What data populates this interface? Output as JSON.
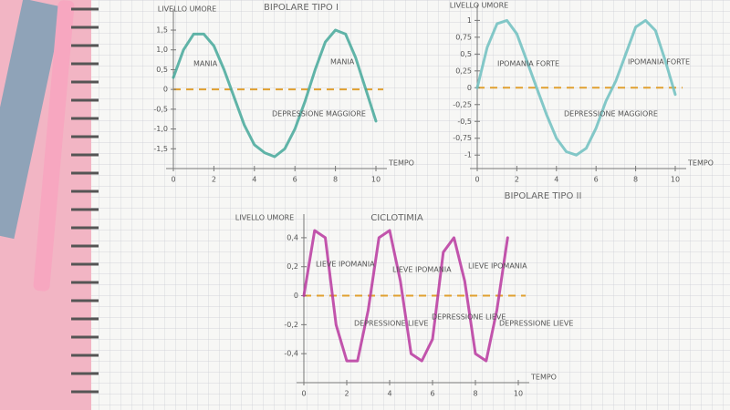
{
  "chart_data": [
    {
      "type": "line",
      "title": "BIPOLARE TIPO I",
      "y_label": "LIVELLO UMORE",
      "x_label": "TEMPO",
      "xlim": [
        0,
        10
      ],
      "ylim": [
        -2,
        1.8
      ],
      "xticks": [
        0,
        2,
        4,
        6,
        8,
        10
      ],
      "yticks": [
        {
          "value": 1.5,
          "label": "1,5"
        },
        {
          "value": 1,
          "label": "1,0"
        },
        {
          "value": 0.5,
          "label": "0,5"
        },
        0,
        {
          "value": -0.5,
          "label": "-0,5"
        },
        {
          "value": -1,
          "label": "-1,0"
        },
        {
          "value": -1.5,
          "label": "-1,5"
        }
      ],
      "annotations": [
        "MANIA",
        "MANIA",
        "DEPRESSIONE MAGGIORE"
      ],
      "series": [
        {
          "color": "#45a89a",
          "x": [
            0,
            0.5,
            1,
            1.5,
            2,
            2.5,
            3,
            3.5,
            4,
            4.5,
            5,
            5.5,
            6,
            6.5,
            7,
            7.5,
            8,
            8.5,
            9,
            9.5,
            10
          ],
          "values": [
            0.3,
            1.0,
            1.4,
            1.4,
            1.1,
            0.5,
            -0.2,
            -0.9,
            -1.4,
            -1.6,
            -1.7,
            -1.5,
            -1.0,
            -0.3,
            0.5,
            1.2,
            1.5,
            1.4,
            0.8,
            0,
            -0.8
          ]
        }
      ]
    },
    {
      "type": "line",
      "title": "BIPOLARE TIPO II",
      "y_label": "LIVELLO UMORE",
      "x_label": "TEMPO",
      "xlim": [
        0,
        10
      ],
      "ylim": [
        -1.2,
        1.1
      ],
      "xticks": [
        0,
        2,
        4,
        6,
        8,
        10
      ],
      "yticks": [
        1,
        {
          "value": 0.75,
          "label": "0,75"
        },
        {
          "value": 0.5,
          "label": "0,5"
        },
        {
          "value": 0.25,
          "label": "0,25"
        },
        0,
        {
          "value": -0.25,
          "label": "-0,25"
        },
        {
          "value": -0.5,
          "label": "-0,5"
        },
        {
          "value": -0.75,
          "label": "-0,75"
        },
        -1
      ],
      "annotations": [
        "IPOMANIA FORTE",
        "DEPRESSIONE MAGGIORE",
        "IPOMANIA FORTE"
      ],
      "series": [
        {
          "color": "#6fbfc0",
          "x": [
            0,
            0.5,
            1,
            1.5,
            2,
            2.5,
            3,
            3.5,
            4,
            4.5,
            5,
            5.5,
            6,
            6.5,
            7,
            7.5,
            8,
            8.5,
            9,
            9.5,
            10
          ],
          "values": [
            0,
            0.6,
            0.95,
            1,
            0.8,
            0.4,
            0,
            -0.4,
            -0.75,
            -0.95,
            -1,
            -0.9,
            -0.6,
            -0.2,
            0.1,
            0.5,
            0.9,
            1,
            0.85,
            0.4,
            -0.1
          ]
        }
      ]
    },
    {
      "type": "line",
      "title": "CICLOTIMIA",
      "y_label": "LIVELLO UMORE",
      "x_label": "TEMPO",
      "xlim": [
        0,
        10
      ],
      "ylim": [
        -0.6,
        0.5
      ],
      "xticks": [
        0,
        2,
        4,
        6,
        8,
        10
      ],
      "yticks": [
        {
          "value": 0.4,
          "label": "0,4"
        },
        {
          "value": 0.2,
          "label": "0,2"
        },
        0,
        {
          "value": -0.2,
          "label": "-0,2"
        },
        {
          "value": -0.4,
          "label": "-0,4"
        }
      ],
      "annotations": [
        "LIEVE IPOMANIA",
        "DEPRESSIONE LIEVE",
        "LIEVE IPOMANIA",
        "DEPRESSIONE LIEVE",
        "LIEVE IPOMANIA",
        "DEPRESSIONE LIEVE"
      ],
      "series": [
        {
          "color": "#b9379f",
          "x": [
            0,
            0.5,
            1,
            1.5,
            2,
            2.5,
            3,
            3.5,
            4,
            4.5,
            5,
            5.5,
            6,
            6.5,
            7,
            7.5,
            8,
            8.5,
            9,
            9.5
          ],
          "values": [
            0,
            0.45,
            0.4,
            -0.2,
            -0.45,
            -0.45,
            -0.1,
            0.4,
            0.45,
            0.1,
            -0.4,
            -0.45,
            -0.3,
            0.3,
            0.4,
            0.1,
            -0.4,
            -0.45,
            -0.1,
            0.4
          ]
        }
      ]
    }
  ]
}
